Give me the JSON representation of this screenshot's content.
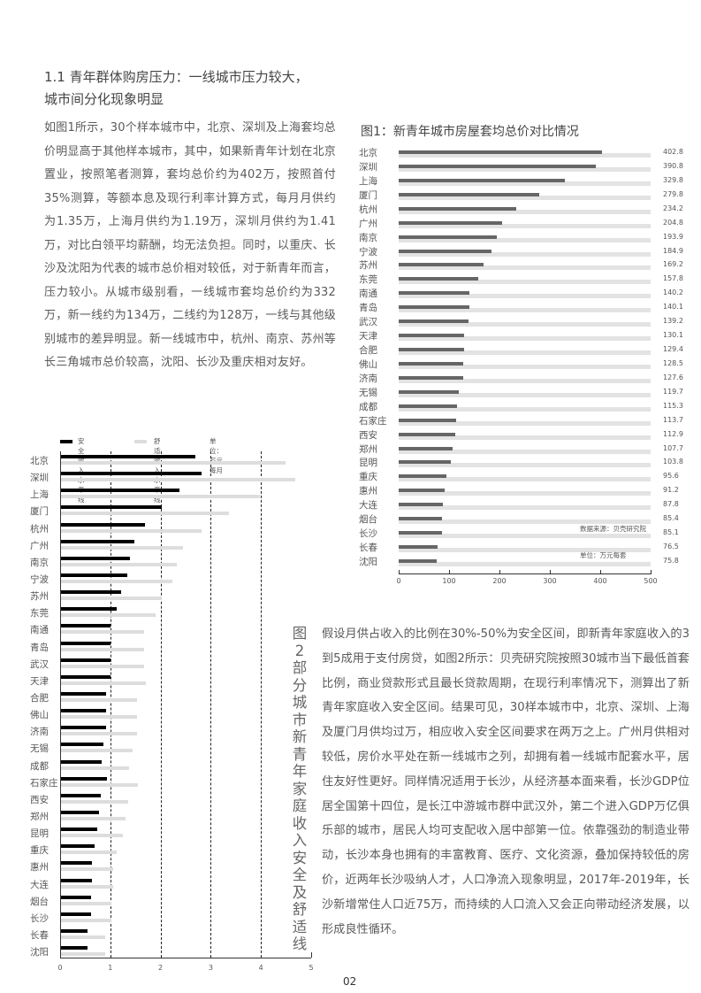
{
  "heading": {
    "line1": "1.1 青年群体购房压力：一线城市压力较大，",
    "line2": "城市间分化现象明显"
  },
  "paragraph1": "如图1所示，30个样本城市中，北京、深圳及上海套均总价明显高于其他样本城市，其中，如果新青年计划在北京置业，按照笔者测算，套均总价约为402万，按照首付35%测算，等额本息及现行利率计算方式，每月月供约为1.35万，上海月供约为1.19万，深圳月供约为1.41万，对比白领平均薪酬，均无法负担。同时，以重庆、长沙及沈阳为代表的城市总价相对较低，对于新青年而言，压力较小。从城市级别看，一线城市套均总价约为332万，新一线约为134万，二线约为128万，一线与其他级别城市的差异明显。新一线城市中，杭州、南京、苏州等长三角城市总价较高，沈阳、长沙及重庆相对友好。",
  "paragraph2": "假设月供占收入的比例在30%-50%为安全区间，即新青年家庭收入的3到5成用于支付房贷，如图2所示：贝壳研究院按照30城市当下最低首套比例，商业贷款形式且最长贷款周期，在现行利率情况下，测算出了新青年家庭收入安全区间。结果可见，30样本城市中，北京、深圳、上海及厦门月供均过万，相应收入安全区间要求在两万之上。广州月供相对较低，房价水平处在新一线城市之列，却拥有着一线城市配套水平，居住友好性更好。同样情况适用于长沙，从经济基本面来看，长沙GDP位居全国第十四位，是长江中游城市群中武汉外，第二个进入GDP万亿俱乐部的城市，居民人均可支配收入居中部第一位。依靠强劲的制造业带动，长沙本身也拥有的丰富教育、医疗、文化资源，叠加保持较低的房价，近两年长沙吸纳人才，人口净流入现象明显，2017年-2019年，长沙新增常住人口近75万，而持续的人口流入又会正向带动经济发展，以形成良性循环。",
  "page_number": "02",
  "chart_data": [
    {
      "type": "bar",
      "orientation": "horizontal",
      "title": "图1：新青年城市房屋套均总价对比情况",
      "source": "数据来源：贝壳研究院",
      "unit": "单位：万元每套",
      "categories": [
        "北京",
        "深圳",
        "上海",
        "厦门",
        "杭州",
        "广州",
        "南京",
        "宁波",
        "苏州",
        "东莞",
        "南通",
        "青岛",
        "武汉",
        "天津",
        "合肥",
        "佛山",
        "济南",
        "无锡",
        "成都",
        "石家庄",
        "西安",
        "郑州",
        "昆明",
        "重庆",
        "惠州",
        "大连",
        "烟台",
        "长沙",
        "长春",
        "沈阳"
      ],
      "values": [
        402.8,
        390.8,
        329.8,
        279.8,
        234.2,
        204.8,
        193.9,
        184.9,
        169.2,
        157.8,
        140.2,
        140.1,
        139.2,
        130.1,
        129.4,
        128.5,
        127.6,
        119.7,
        115.3,
        113.7,
        112.9,
        107.7,
        103.8,
        95.6,
        91.2,
        87.8,
        85.4,
        85.1,
        76.5,
        75.8
      ],
      "value_labels": [
        "402.8",
        "390.8",
        "329.8",
        "279.8",
        "234.2",
        "204.8",
        "193.9",
        "184.9",
        "169.2",
        "157.8",
        "140.2",
        "140.1",
        "139.2",
        "130.1",
        "129.4",
        "128.5",
        "127.6",
        "119.7",
        "115.3",
        "113.7",
        "112.9",
        "107.7",
        "103.8",
        "95.6",
        "91.2",
        "87.8",
        "85.4",
        "85.1",
        "76.5",
        "75.8"
      ],
      "xlim": [
        0,
        500
      ],
      "xticks": [
        "0",
        "100",
        "200",
        "300",
        "400",
        "500"
      ],
      "colors": {
        "bar": "#666666",
        "track": "#e3e3e3"
      }
    },
    {
      "type": "bar",
      "orientation": "horizontal",
      "title": "图2 部分城市新青年家庭收入安全及舒适线",
      "unit": "单位：万元每月",
      "categories": [
        "北京",
        "深圳",
        "上海",
        "厦门",
        "杭州",
        "广州",
        "南京",
        "宁波",
        "苏州",
        "东莞",
        "南通",
        "青岛",
        "武汉",
        "天津",
        "合肥",
        "佛山",
        "济南",
        "无锡",
        "成都",
        "石家庄",
        "西安",
        "郑州",
        "昆明",
        "重庆",
        "惠州",
        "大连",
        "烟台",
        "长沙",
        "长春",
        "沈阳"
      ],
      "series": [
        {
          "name": "安全收入水平线",
          "color": "#000000",
          "values": [
            2.69,
            2.82,
            2.38,
            2.02,
            1.69,
            1.48,
            1.39,
            1.34,
            1.21,
            1.13,
            1.0,
            1.0,
            1.0,
            1.0,
            0.92,
            0.92,
            0.92,
            0.86,
            0.83,
            0.93,
            0.81,
            0.77,
            0.74,
            0.69,
            0.63,
            0.63,
            0.62,
            0.62,
            0.55,
            0.55
          ]
        },
        {
          "name": "舒适收入水平线",
          "color": "#dddddd",
          "values": [
            4.49,
            4.68,
            3.98,
            3.36,
            2.82,
            2.45,
            2.32,
            2.24,
            2.02,
            1.9,
            1.67,
            1.67,
            1.67,
            1.71,
            1.53,
            1.53,
            1.53,
            1.44,
            1.37,
            1.55,
            1.36,
            1.3,
            1.25,
            1.13,
            1.06,
            1.06,
            1.02,
            1.02,
            0.9,
            0.9
          ]
        }
      ],
      "xlim": [
        0,
        5
      ],
      "xticks": [
        "0",
        "1",
        "2",
        "3",
        "4",
        "5"
      ],
      "reference_lines": [
        1,
        2,
        3,
        4
      ]
    }
  ]
}
